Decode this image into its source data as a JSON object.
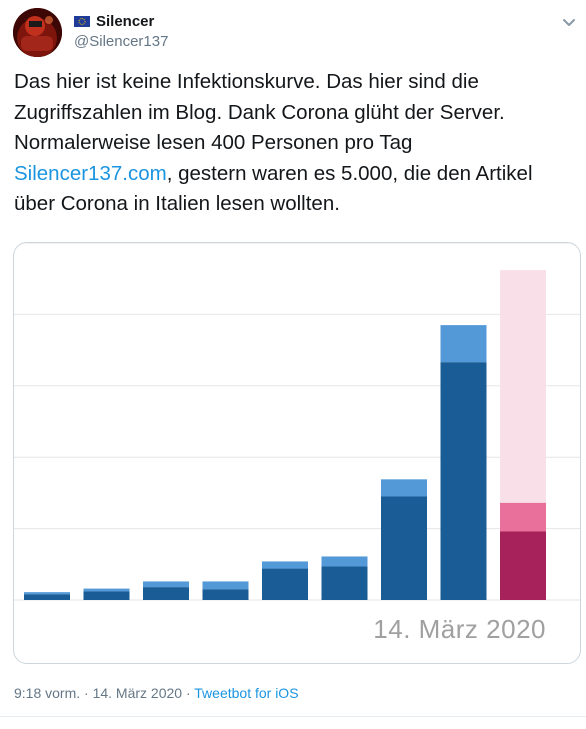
{
  "author": {
    "display_name": "Silencer",
    "handle": "@Silencer137"
  },
  "tweet": {
    "text_part1": "Das hier ist keine Infektionskurve. Das hier sind die Zugriffszahlen im Blog. Dank Corona glüht der Server. Normalerweise lesen 400 Personen pro Tag ",
    "link_text": "Silencer137.com",
    "text_part2": ", gestern waren es  5.000, die den Artikel über Corona in Italien lesen wollten."
  },
  "chart_data": {
    "type": "bar",
    "title": "",
    "date_label": "14. März 2020",
    "ylim": [
      0,
      5
    ],
    "grid": true,
    "colors": {
      "main": "#1a5c96",
      "top": "#5399d7",
      "highlight_main": "#a7215b",
      "highlight_top": "#e8709a",
      "highlight_background": "#f8dfe8"
    },
    "bars": [
      {
        "value": 0.08,
        "top": 0.03
      },
      {
        "value": 0.12,
        "top": 0.04
      },
      {
        "value": 0.18,
        "top": 0.08
      },
      {
        "value": 0.15,
        "top": 0.11
      },
      {
        "value": 0.44,
        "top": 0.1
      },
      {
        "value": 0.47,
        "top": 0.14
      },
      {
        "value": 1.45,
        "top": 0.24
      },
      {
        "value": 3.33,
        "top": 0.52
      },
      {
        "value": 0.96,
        "top": 0.4,
        "highlight": true,
        "background_to": 4.62
      }
    ]
  },
  "footer": {
    "timestamp": "9:18 vorm. · 14. März 2020 · ",
    "source": "Tweetbot for iOS"
  }
}
